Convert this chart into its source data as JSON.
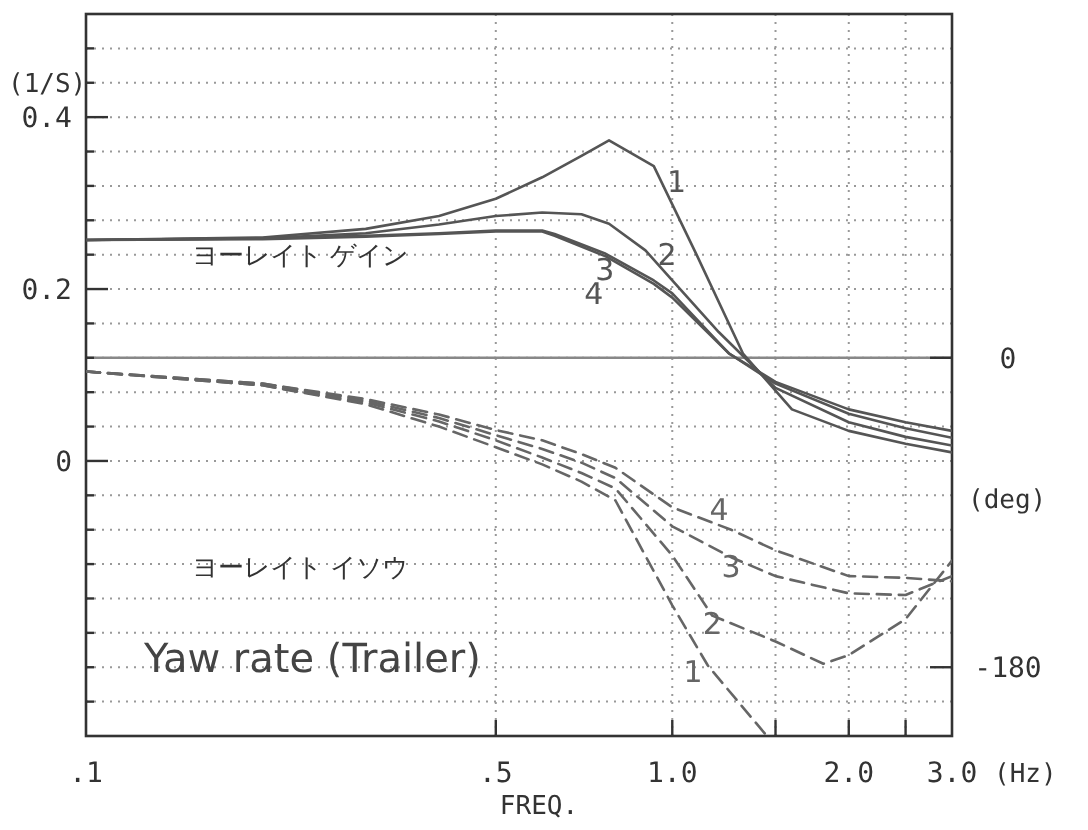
{
  "chart_data": {
    "type": "line",
    "title": "Yaw rate (Trailer)",
    "xlabel": "FREQ.",
    "ylabel": "(1/S)",
    "y2label": "(deg)",
    "annotations": [
      "(Hz)",
      "ヨーレイト ゲイン",
      "ヨーレイト イソウ"
    ],
    "log": "x",
    "grid": true,
    "xlim": [
      0.1,
      3.0
    ],
    "xticks": [
      {
        "value": 0.1,
        "label": ".1"
      },
      {
        "value": 0.5,
        "label": ".5"
      },
      {
        "value": 1.0,
        "label": "1.0"
      },
      {
        "value": 1.5,
        "label": null
      },
      {
        "value": 2.0,
        "label": "2.0"
      },
      {
        "value": 2.5,
        "label": null
      },
      {
        "value": 3.0,
        "label": "3.0"
      }
    ],
    "ylim": [
      -0.32,
      0.52
    ],
    "yticks": [
      {
        "value": -0.28,
        "label": null
      },
      {
        "value": -0.24,
        "label": null
      },
      {
        "value": -0.2,
        "label": null
      },
      {
        "value": -0.16,
        "label": null
      },
      {
        "value": -0.12,
        "label": null
      },
      {
        "value": -0.08,
        "label": null
      },
      {
        "value": -0.04,
        "label": null
      },
      0,
      {
        "value": 0.04,
        "label": null
      },
      {
        "value": 0.08,
        "label": null
      },
      {
        "value": 0.12,
        "label": null
      },
      {
        "value": 0.16,
        "label": null
      },
      0.2,
      {
        "value": 0.24,
        "label": null
      },
      {
        "value": 0.28,
        "label": null
      },
      {
        "value": 0.32,
        "label": null
      },
      {
        "value": 0.36,
        "label": null
      },
      0.4,
      {
        "value": 0.44,
        "label": null
      },
      {
        "value": 0.48,
        "label": null
      }
    ],
    "y2lim": [
      -220,
      200
    ],
    "y2ticks": [
      0,
      -180
    ],
    "ref_lines": [
      {
        "axis": "y2",
        "value": 0,
        "color": "#888888"
      }
    ],
    "series": [
      {
        "name": "1",
        "color": "#555555",
        "line_style": "solid",
        "x": [
          0.1,
          0.2,
          0.3,
          0.4,
          0.5,
          0.6,
          0.7,
          0.78,
          0.93,
          1.1,
          1.32,
          1.6,
          2.0,
          2.5,
          3.0
        ],
        "values": [
          0.257,
          0.26,
          0.27,
          0.285,
          0.305,
          0.33,
          0.355,
          0.373,
          0.343,
          0.24,
          0.125,
          0.06,
          0.035,
          0.02,
          0.01
        ]
      },
      {
        "name": "2",
        "color": "#555555",
        "line_style": "solid",
        "x": [
          0.1,
          0.2,
          0.3,
          0.4,
          0.5,
          0.6,
          0.7,
          0.78,
          0.9,
          1.0,
          1.2,
          1.5,
          2.0,
          2.5,
          3.0
        ],
        "values": [
          0.257,
          0.259,
          0.265,
          0.275,
          0.285,
          0.289,
          0.287,
          0.276,
          0.245,
          0.21,
          0.15,
          0.085,
          0.045,
          0.028,
          0.018
        ]
      },
      {
        "name": "3",
        "color": "#555555",
        "line_style": "solid",
        "x": [
          0.1,
          0.2,
          0.3,
          0.4,
          0.5,
          0.6,
          0.63,
          0.77,
          0.93,
          1.0,
          1.25,
          1.5,
          2.0,
          2.5,
          3.0
        ],
        "values": [
          0.257,
          0.259,
          0.262,
          0.265,
          0.268,
          0.268,
          0.264,
          0.241,
          0.21,
          0.195,
          0.125,
          0.09,
          0.055,
          0.038,
          0.027
        ]
      },
      {
        "name": "4",
        "color": "#555555",
        "line_style": "solid",
        "x": [
          0.1,
          0.2,
          0.3,
          0.4,
          0.5,
          0.6,
          0.63,
          0.77,
          0.93,
          1.0,
          1.25,
          1.5,
          2.0,
          2.5,
          3.0
        ],
        "values": [
          0.257,
          0.258,
          0.261,
          0.264,
          0.267,
          0.267,
          0.262,
          0.238,
          0.206,
          0.19,
          0.125,
          0.092,
          0.06,
          0.045,
          0.035
        ]
      },
      {
        "name": "1",
        "color": "#666666",
        "line_style": "dashed",
        "axis": "y2",
        "x": [
          0.1,
          0.2,
          0.3,
          0.4,
          0.5,
          0.6,
          0.7,
          0.8,
          1.0,
          1.15,
          1.45
        ],
        "values": [
          -8,
          -16,
          -27,
          -40,
          -52,
          -62,
          -72,
          -83,
          -144,
          -179,
          -220
        ]
      },
      {
        "name": "2",
        "color": "#666666",
        "line_style": "dashed",
        "axis": "y2",
        "x": [
          0.1,
          0.2,
          0.3,
          0.4,
          0.5,
          0.6,
          0.7,
          0.8,
          1.0,
          1.17,
          1.5,
          1.81,
          2.0,
          2.5,
          3.0
        ],
        "values": [
          -8,
          -16,
          -26,
          -37,
          -48,
          -58,
          -67,
          -76,
          -115,
          -150,
          -165,
          -178,
          -173,
          -152,
          -118
        ]
      },
      {
        "name": "3",
        "color": "#666666",
        "line_style": "dashed",
        "axis": "y2",
        "x": [
          0.1,
          0.2,
          0.3,
          0.4,
          0.5,
          0.6,
          0.7,
          0.8,
          1.0,
          1.26,
          1.5,
          2.0,
          2.5,
          3.0
        ],
        "values": [
          -8,
          -15,
          -25,
          -35,
          -45,
          -53,
          -61,
          -70,
          -98,
          -116,
          -127,
          -137,
          -138,
          -127
        ]
      },
      {
        "name": "4",
        "color": "#666666",
        "line_style": "dashed",
        "axis": "y2",
        "x": [
          0.1,
          0.2,
          0.3,
          0.4,
          0.5,
          0.6,
          0.7,
          0.8,
          1.0,
          1.26,
          1.5,
          2.0,
          2.5,
          3.0
        ],
        "values": [
          -8,
          -15,
          -24,
          -33,
          -42,
          -48,
          -56,
          -64,
          -87,
          -100,
          -112,
          -127,
          -128,
          -130
        ]
      }
    ]
  }
}
